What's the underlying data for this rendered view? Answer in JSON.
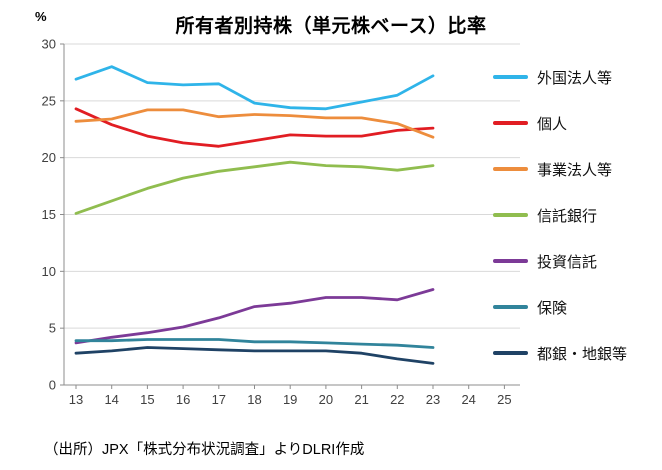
{
  "chart_data": {
    "type": "line",
    "title": "所有者別持株（単元株ベース）比率",
    "xlabel": "",
    "ylabel": "%",
    "x": [
      13,
      14,
      15,
      16,
      17,
      18,
      19,
      20,
      21,
      22,
      23
    ],
    "x_ticks": [
      13,
      14,
      15,
      16,
      17,
      18,
      19,
      20,
      21,
      22,
      23,
      24,
      25
    ],
    "ylim": [
      0,
      30
    ],
    "y_ticks": [
      0,
      5,
      10,
      15,
      20,
      25,
      30
    ],
    "grid": true,
    "legend_position": "right",
    "series": [
      {
        "name": "外国法人等",
        "color": "#2FB4E9",
        "values": [
          26.9,
          28.0,
          26.6,
          26.4,
          26.5,
          24.8,
          24.4,
          24.3,
          24.9,
          25.5,
          27.2
        ]
      },
      {
        "name": "個人",
        "color": "#E11D23",
        "values": [
          24.3,
          22.9,
          21.9,
          21.3,
          21.0,
          21.5,
          22.0,
          21.9,
          21.9,
          22.4,
          22.6
        ]
      },
      {
        "name": "事業法人等",
        "color": "#ED8D3D",
        "values": [
          23.2,
          23.4,
          24.2,
          24.2,
          23.6,
          23.8,
          23.7,
          23.5,
          23.5,
          23.0,
          21.8
        ]
      },
      {
        "name": "信託銀行",
        "color": "#90BD4F",
        "values": [
          15.1,
          16.2,
          17.3,
          18.2,
          18.8,
          19.2,
          19.6,
          19.3,
          19.2,
          18.9,
          19.3
        ]
      },
      {
        "name": "投資信託",
        "color": "#7C3A97",
        "values": [
          3.7,
          4.2,
          4.6,
          5.1,
          5.9,
          6.9,
          7.2,
          7.7,
          7.7,
          7.5,
          8.4
        ]
      },
      {
        "name": "保険",
        "color": "#31849B",
        "values": [
          3.9,
          3.9,
          4.0,
          4.0,
          4.0,
          3.8,
          3.8,
          3.7,
          3.6,
          3.5,
          3.3
        ]
      },
      {
        "name": "都銀・地銀等",
        "color": "#1F4265",
        "values": [
          2.8,
          3.0,
          3.3,
          3.2,
          3.1,
          3.0,
          3.0,
          3.0,
          2.8,
          2.3,
          1.9
        ]
      }
    ]
  },
  "footer": {
    "source": "（出所）JPX「株式分布状況調査」よりDLRI作成"
  }
}
